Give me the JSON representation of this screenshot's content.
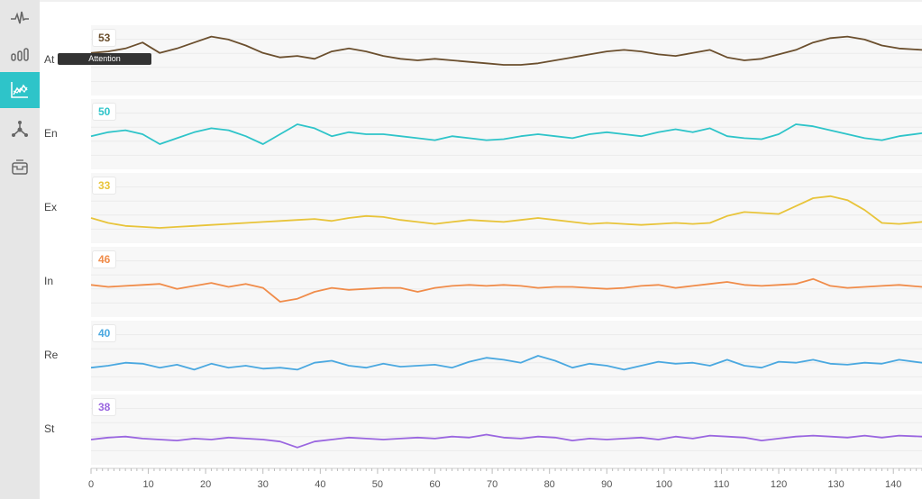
{
  "nav": {
    "items": [
      {
        "icon": "pulse-icon",
        "active": false
      },
      {
        "icon": "bar-chart-icon",
        "active": false
      },
      {
        "icon": "line-chart-icon",
        "active": true
      },
      {
        "icon": "network-icon",
        "active": false
      },
      {
        "icon": "inbox-icon",
        "active": false
      }
    ]
  },
  "tooltip": {
    "text": "Attention"
  },
  "chart_data": {
    "type": "line",
    "xlim": [
      0,
      145
    ],
    "x_ticks": [
      0,
      10,
      20,
      30,
      40,
      50,
      60,
      70,
      80,
      90,
      100,
      110,
      120,
      130,
      140
    ],
    "grid": true,
    "series": [
      {
        "name": "At",
        "current_value": "53",
        "color": "#6b4f2e",
        "ylim": [
          30,
          70
        ],
        "x": [
          0,
          3,
          6,
          9,
          12,
          15,
          18,
          21,
          24,
          27,
          30,
          33,
          36,
          39,
          42,
          45,
          48,
          51,
          54,
          57,
          60,
          63,
          66,
          69,
          72,
          75,
          78,
          81,
          84,
          87,
          90,
          93,
          96,
          99,
          102,
          105,
          108,
          111,
          114,
          117,
          120,
          123,
          126,
          129,
          132,
          135,
          138,
          141,
          145
        ],
        "values": [
          55,
          56,
          58,
          62,
          55,
          58,
          62,
          66,
          64,
          60,
          55,
          52,
          53,
          51,
          56,
          58,
          56,
          53,
          51,
          50,
          51,
          50,
          49,
          48,
          47,
          47,
          48,
          50,
          52,
          54,
          56,
          57,
          56,
          54,
          53,
          55,
          57,
          52,
          50,
          51,
          54,
          57,
          62,
          65,
          66,
          64,
          60,
          58,
          57
        ]
      },
      {
        "name": "En",
        "current_value": "50",
        "color": "#2ec4c9",
        "ylim": [
          20,
          80
        ],
        "x": [
          0,
          3,
          6,
          9,
          12,
          15,
          18,
          21,
          24,
          27,
          30,
          33,
          36,
          39,
          42,
          45,
          48,
          51,
          54,
          57,
          60,
          63,
          66,
          69,
          72,
          75,
          78,
          81,
          84,
          87,
          90,
          93,
          96,
          99,
          102,
          105,
          108,
          111,
          114,
          117,
          120,
          123,
          126,
          129,
          132,
          135,
          138,
          141,
          145
        ],
        "values": [
          48,
          52,
          54,
          50,
          40,
          46,
          52,
          56,
          54,
          48,
          40,
          50,
          60,
          56,
          48,
          52,
          50,
          50,
          48,
          46,
          44,
          48,
          46,
          44,
          45,
          48,
          50,
          48,
          46,
          50,
          52,
          50,
          48,
          52,
          55,
          52,
          56,
          48,
          46,
          45,
          50,
          60,
          58,
          54,
          50,
          46,
          44,
          48,
          51
        ]
      },
      {
        "name": "Ex",
        "current_value": "33",
        "color": "#e8c43a",
        "ylim": [
          20,
          80
        ],
        "x": [
          0,
          3,
          6,
          9,
          12,
          15,
          18,
          21,
          24,
          27,
          30,
          33,
          36,
          39,
          42,
          45,
          48,
          51,
          54,
          57,
          60,
          63,
          66,
          69,
          72,
          75,
          78,
          81,
          84,
          87,
          90,
          93,
          96,
          99,
          102,
          105,
          108,
          111,
          114,
          117,
          120,
          123,
          126,
          129,
          132,
          135,
          138,
          141,
          145
        ],
        "values": [
          40,
          35,
          32,
          31,
          30,
          31,
          32,
          33,
          34,
          35,
          36,
          37,
          38,
          39,
          37,
          40,
          42,
          41,
          38,
          36,
          34,
          36,
          38,
          37,
          36,
          38,
          40,
          38,
          36,
          34,
          35,
          34,
          33,
          34,
          35,
          34,
          35,
          42,
          46,
          45,
          44,
          52,
          60,
          62,
          58,
          48,
          35,
          34,
          36
        ]
      },
      {
        "name": "In",
        "current_value": "46",
        "color": "#f08c4a",
        "ylim": [
          20,
          80
        ],
        "x": [
          0,
          3,
          6,
          9,
          12,
          15,
          18,
          21,
          24,
          27,
          30,
          33,
          36,
          39,
          42,
          45,
          48,
          51,
          54,
          57,
          60,
          63,
          66,
          69,
          72,
          75,
          78,
          81,
          84,
          87,
          90,
          93,
          96,
          99,
          102,
          105,
          108,
          111,
          114,
          117,
          120,
          123,
          126,
          129,
          132,
          135,
          138,
          141,
          145
        ],
        "values": [
          47,
          45,
          46,
          47,
          48,
          43,
          46,
          49,
          45,
          48,
          44,
          30,
          33,
          40,
          44,
          42,
          43,
          44,
          44,
          40,
          44,
          46,
          47,
          46,
          47,
          46,
          44,
          45,
          45,
          44,
          43,
          44,
          46,
          47,
          44,
          46,
          48,
          50,
          47,
          46,
          47,
          48,
          53,
          46,
          44,
          45,
          46,
          47,
          45
        ]
      },
      {
        "name": "Re",
        "current_value": "40",
        "color": "#4aa8e0",
        "ylim": [
          20,
          80
        ],
        "x": [
          0,
          3,
          6,
          9,
          12,
          15,
          18,
          21,
          24,
          27,
          30,
          33,
          36,
          39,
          42,
          45,
          48,
          51,
          54,
          57,
          60,
          63,
          66,
          69,
          72,
          75,
          78,
          81,
          84,
          87,
          90,
          93,
          96,
          99,
          102,
          105,
          108,
          111,
          114,
          117,
          120,
          123,
          126,
          129,
          132,
          135,
          138,
          141,
          145
        ],
        "values": [
          38,
          40,
          43,
          42,
          38,
          41,
          36,
          42,
          38,
          40,
          37,
          38,
          36,
          43,
          45,
          40,
          38,
          42,
          39,
          40,
          41,
          38,
          44,
          48,
          46,
          43,
          50,
          45,
          38,
          42,
          40,
          36,
          40,
          44,
          42,
          43,
          40,
          46,
          40,
          38,
          44,
          43,
          46,
          42,
          41,
          43,
          42,
          46,
          43
        ]
      },
      {
        "name": "St",
        "current_value": "38",
        "color": "#9a66e0",
        "ylim": [
          20,
          80
        ],
        "x": [
          0,
          3,
          6,
          9,
          12,
          15,
          18,
          21,
          24,
          27,
          30,
          33,
          36,
          39,
          42,
          45,
          48,
          51,
          54,
          57,
          60,
          63,
          66,
          69,
          72,
          75,
          78,
          81,
          84,
          87,
          90,
          93,
          96,
          99,
          102,
          105,
          108,
          111,
          114,
          117,
          120,
          123,
          126,
          129,
          132,
          135,
          138,
          141,
          145
        ],
        "values": [
          40,
          42,
          43,
          41,
          40,
          39,
          41,
          40,
          42,
          41,
          40,
          38,
          32,
          38,
          40,
          42,
          41,
          40,
          41,
          42,
          41,
          43,
          42,
          45,
          42,
          41,
          43,
          42,
          39,
          41,
          40,
          41,
          42,
          40,
          43,
          41,
          44,
          43,
          42,
          39,
          41,
          43,
          44,
          43,
          42,
          44,
          42,
          44,
          43
        ]
      }
    ]
  }
}
